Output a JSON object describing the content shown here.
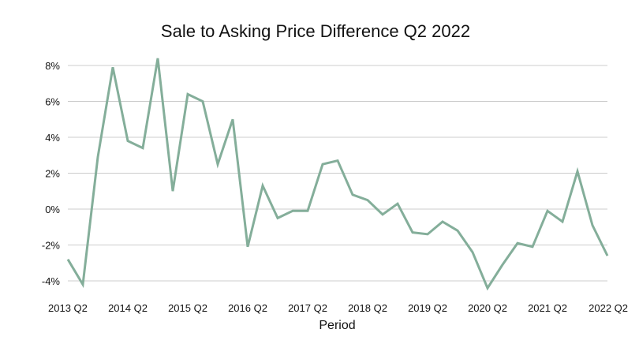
{
  "chart_data": {
    "type": "line",
    "title": "Sale to Asking Price Difference Q2 2022",
    "xlabel": "Period",
    "ylabel": "",
    "ylim": [
      -4.5,
      8.5
    ],
    "y_ticks": [
      -4,
      -2,
      0,
      2,
      4,
      6,
      8
    ],
    "y_tick_labels": [
      "-4%",
      "-2%",
      "0%",
      "2%",
      "4%",
      "6%",
      "8%"
    ],
    "x_tick_labels": [
      "2013 Q2",
      "2014 Q2",
      "2015 Q2",
      "2016 Q2",
      "2017 Q2",
      "2018 Q2",
      "2019 Q2",
      "2020 Q2",
      "2021 Q2",
      "2022 Q2"
    ],
    "grid": true,
    "legend": "none",
    "color": "#84ae9a",
    "series": [
      {
        "x": [
          "2013 Q2",
          "2013 Q3",
          "2013 Q4",
          "2014 Q1",
          "2014 Q2",
          "2014 Q3",
          "2014 Q4",
          "2015 Q1",
          "2015 Q2",
          "2015 Q3",
          "2015 Q4",
          "2016 Q1",
          "2016 Q2",
          "2016 Q3",
          "2016 Q4",
          "2017 Q1",
          "2017 Q2",
          "2017 Q3",
          "2017 Q4",
          "2018 Q1",
          "2018 Q2",
          "2018 Q3",
          "2018 Q4",
          "2019 Q1",
          "2019 Q2",
          "2019 Q3",
          "2019 Q4",
          "2020 Q1",
          "2020 Q2",
          "2020 Q3",
          "2020 Q4",
          "2021 Q1",
          "2021 Q2",
          "2021 Q3",
          "2021 Q4",
          "2022 Q1",
          "2022 Q2"
        ],
        "values": [
          -2.8,
          -4.2,
          2.9,
          7.9,
          3.8,
          3.4,
          8.4,
          1.0,
          6.4,
          6.0,
          2.5,
          5.0,
          -2.1,
          1.3,
          -0.5,
          -0.1,
          -0.1,
          2.5,
          2.7,
          0.8,
          0.5,
          -0.3,
          0.3,
          -1.3,
          -1.4,
          -0.7,
          -1.2,
          -2.4,
          -4.4,
          -3.1,
          -1.9,
          -2.1,
          -0.1,
          -0.7,
          2.1,
          -0.9,
          -2.6
        ]
      }
    ]
  }
}
